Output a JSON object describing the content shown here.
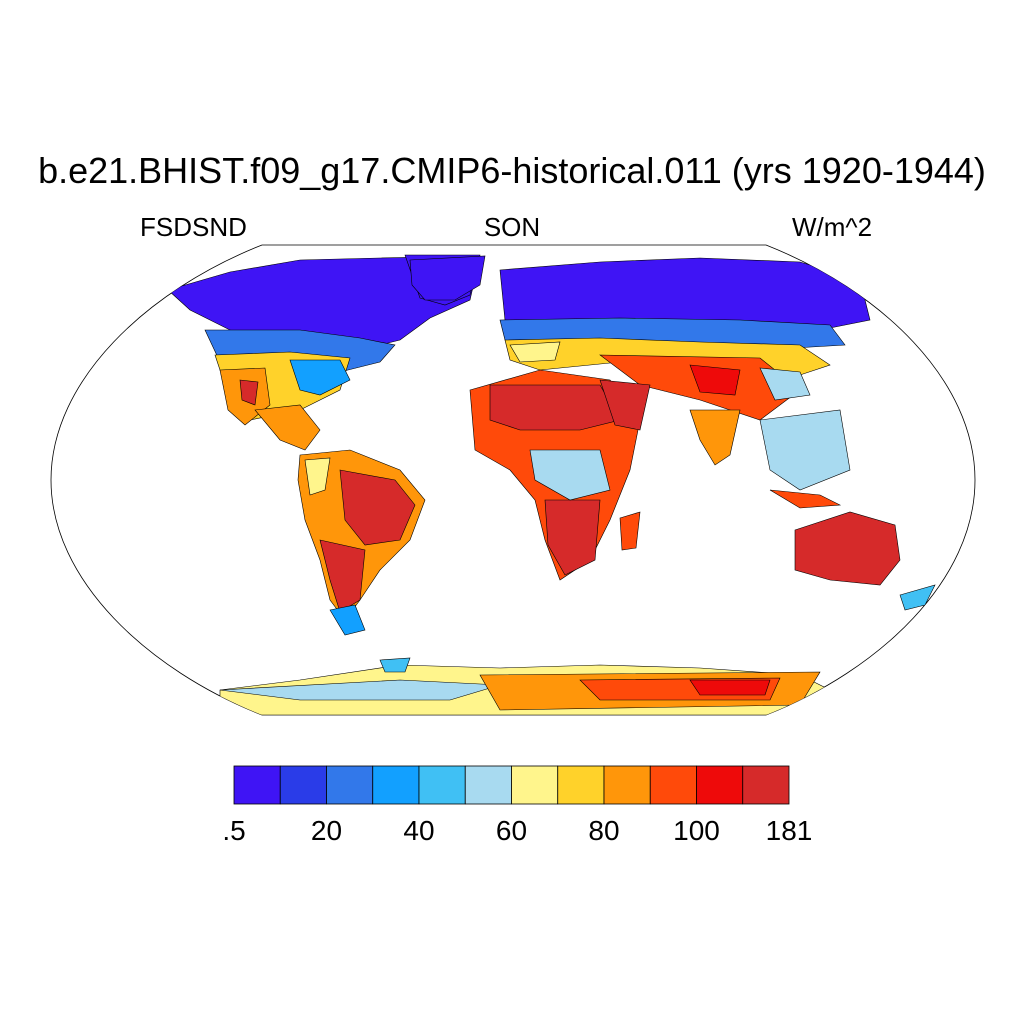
{
  "map": {
    "title": "b.e21.BHIST.f09_g17.CMIP6-historical.011 (yrs 1920-1944)",
    "left_label": "FSDSND",
    "center_label": "SON",
    "right_label": "W/m^2",
    "projection": "robinson"
  },
  "colorbar": {
    "colors": [
      "#3f14f5",
      "#2a3ce8",
      "#3278ea",
      "#12a0ff",
      "#40c0f4",
      "#a8daf0",
      "#fff58c",
      "#ffd22a",
      "#ff960a",
      "#ff4a0a",
      "#ee0a0a",
      "#d62a2a"
    ],
    "tick_labels": [
      ".5",
      "20",
      "40",
      "60",
      "80",
      "100",
      "181"
    ]
  }
}
